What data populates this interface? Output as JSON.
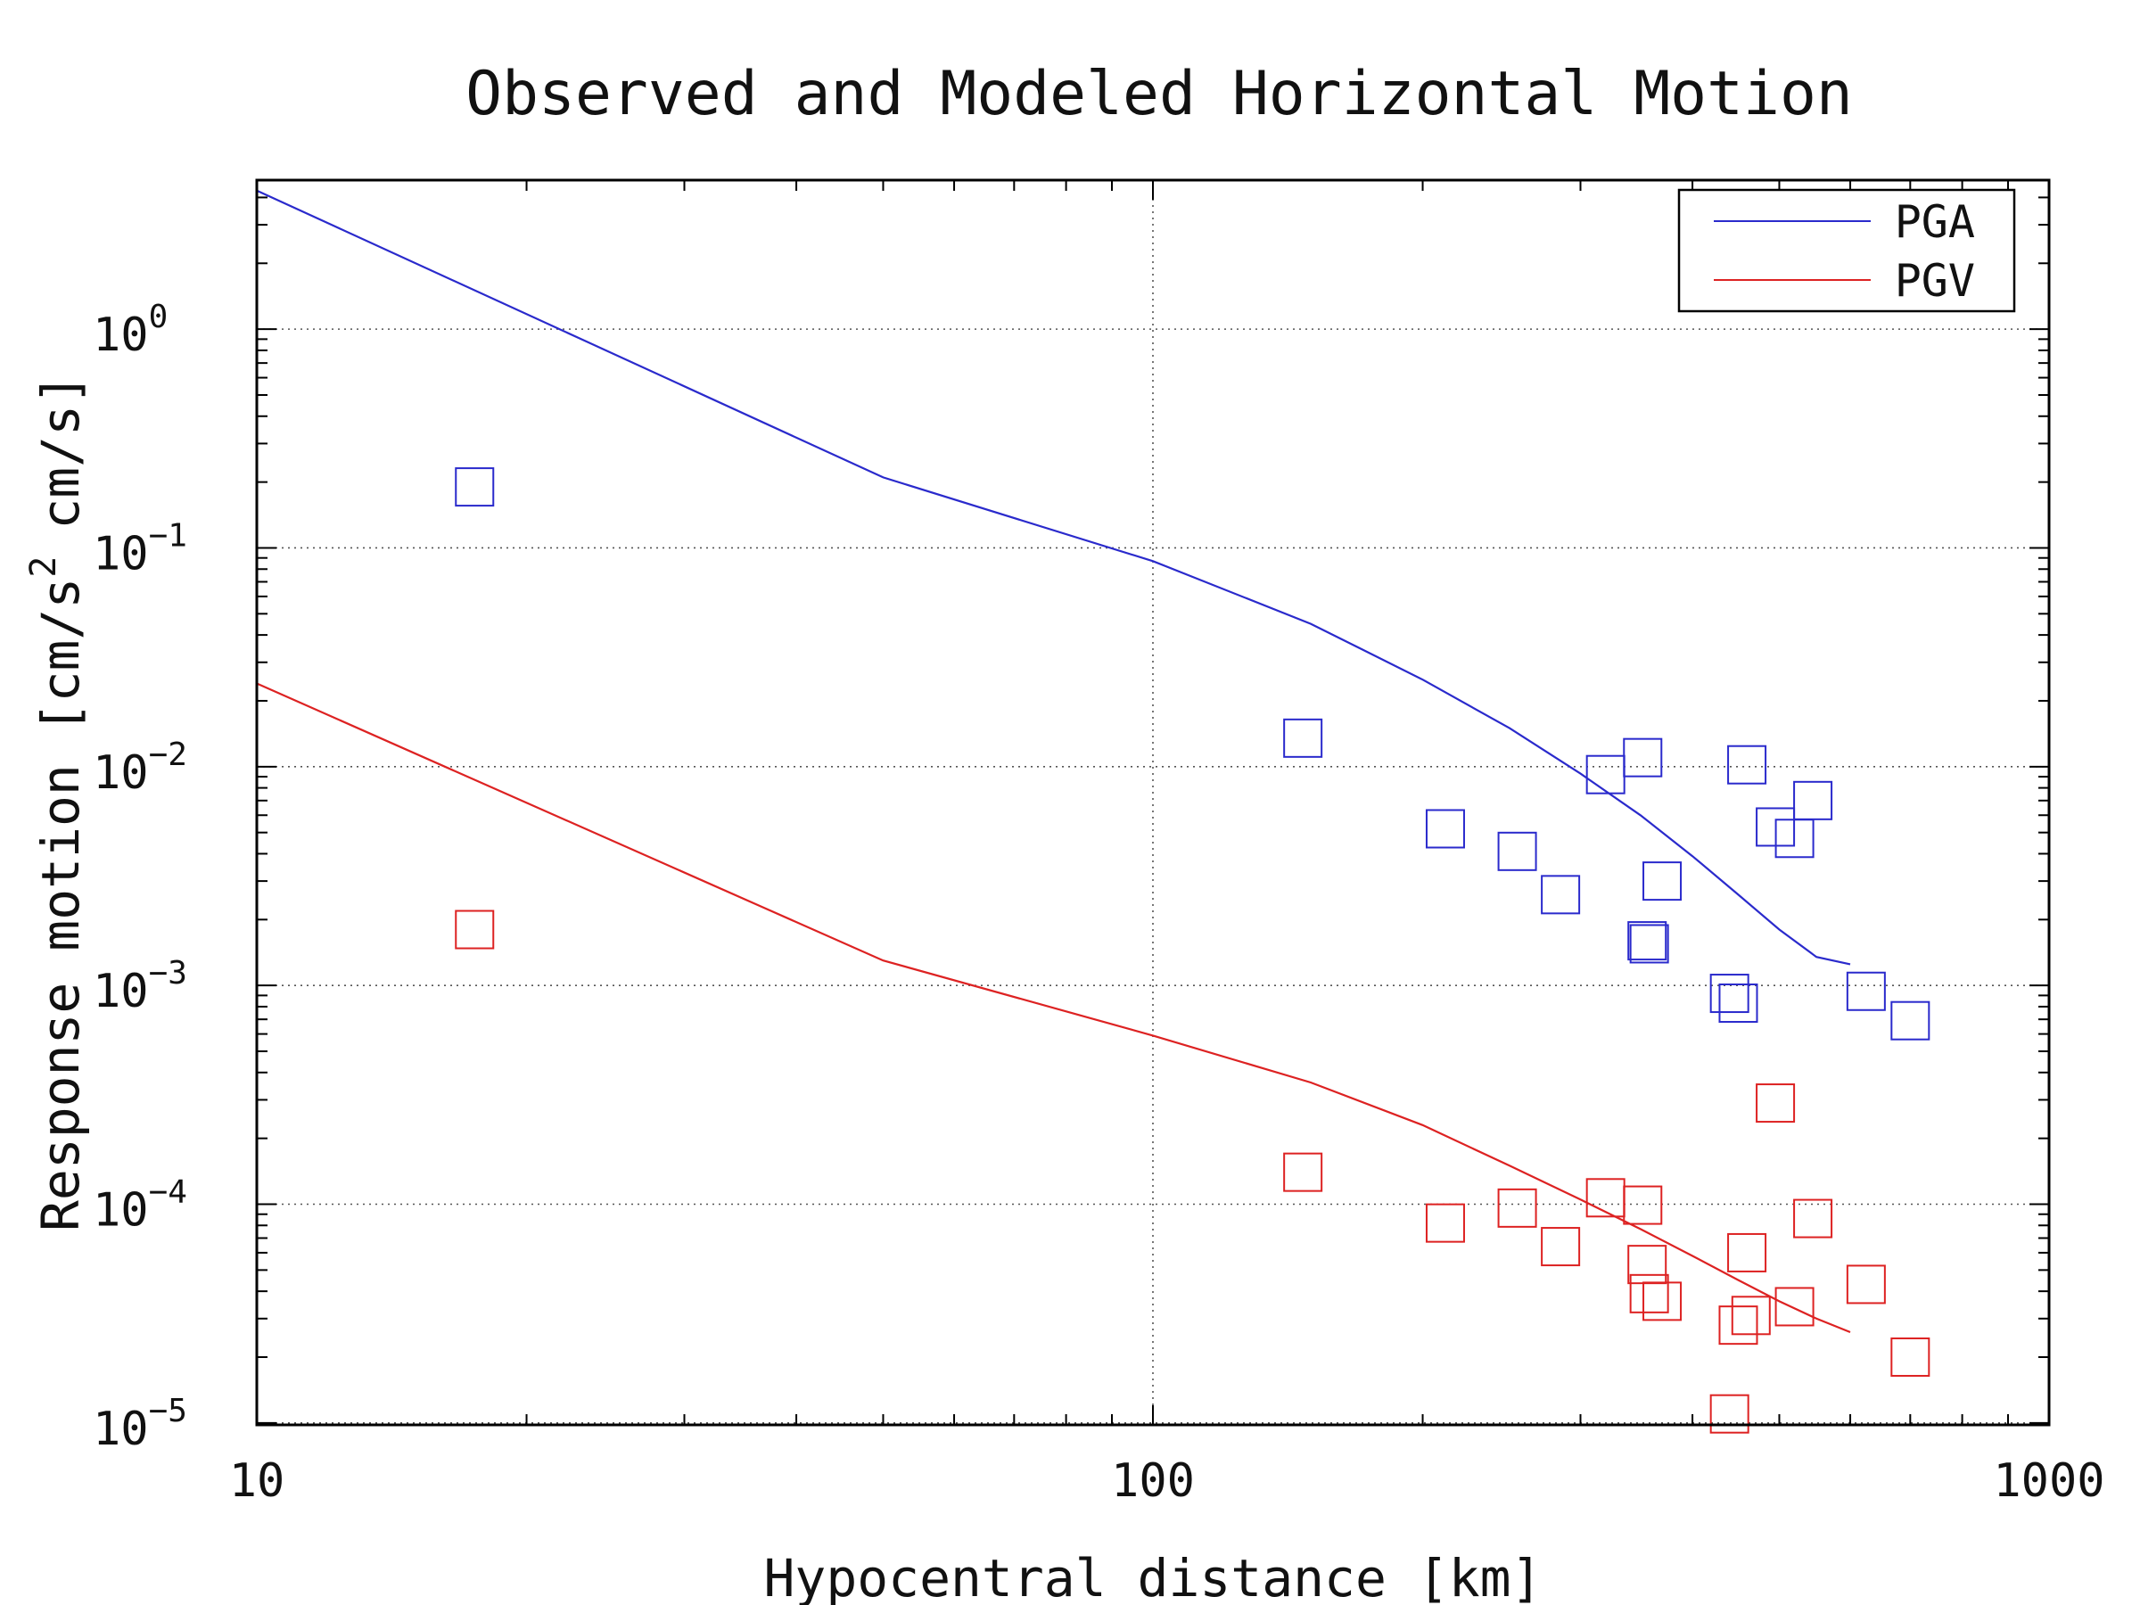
{
  "chart_data": {
    "type": "scatter",
    "title": "Observed and Modeled Horizontal Motion",
    "xlabel": "Hypocentral distance [km]",
    "ylabel": "Response motion [cm/s² cm/s]",
    "x_scale": "log",
    "y_scale": "log",
    "xlim": [
      10,
      1000
    ],
    "ylim": [
      9.8e-06,
      4.8
    ],
    "grid": true,
    "legend_position": "top-right",
    "x_ticks": [
      {
        "value": 10,
        "label": "10"
      },
      {
        "value": 100,
        "label": "100"
      },
      {
        "value": 1000,
        "label": "1000"
      }
    ],
    "y_ticks": [
      {
        "value": 1,
        "base": "10",
        "exp": "0"
      },
      {
        "value": 0.1,
        "base": "10",
        "exp": "−1"
      },
      {
        "value": 0.01,
        "base": "10",
        "exp": "−2"
      },
      {
        "value": 0.001,
        "base": "10",
        "exp": "−3"
      },
      {
        "value": 0.0001,
        "base": "10",
        "exp": "−4"
      },
      {
        "value": 1e-05,
        "base": "10",
        "exp": "−5"
      }
    ],
    "ylabel_parts": {
      "main": "Response motion [cm/s",
      "sup": "2",
      "tail": "cm/s]"
    },
    "series": [
      {
        "name": "PGA",
        "kind": "line",
        "color": "#2a2acc",
        "x": [
          10,
          50,
          100,
          150,
          200,
          250,
          300,
          350,
          400,
          450,
          500,
          550,
          600
        ],
        "y": [
          4.3,
          0.21,
          0.087,
          0.045,
          0.025,
          0.015,
          0.0093,
          0.006,
          0.0039,
          0.0026,
          0.0018,
          0.00135,
          0.00125
        ]
      },
      {
        "name": "PGV",
        "kind": "line",
        "color": "#dd2222",
        "x": [
          10,
          50,
          100,
          150,
          200,
          250,
          300,
          350,
          400,
          450,
          500,
          550,
          600
        ],
        "y": [
          0.024,
          0.0013,
          0.00059,
          0.00036,
          0.00023,
          0.00015,
          0.000105,
          7.7e-05,
          5.8e-05,
          4.5e-05,
          3.6e-05,
          3e-05,
          2.6e-05
        ]
      },
      {
        "name": "PGA observed",
        "kind": "points",
        "color": "#2a2acc",
        "x": [
          17.5,
          147,
          212,
          255,
          285,
          320,
          352,
          356,
          358,
          370,
          440,
          450,
          460,
          495,
          520,
          545,
          625,
          700
        ],
        "y": [
          0.19,
          0.0135,
          0.0052,
          0.0041,
          0.0026,
          0.0092,
          0.011,
          0.0016,
          0.00155,
          0.003,
          0.00092,
          0.00083,
          0.0102,
          0.0053,
          0.0047,
          0.007,
          0.00094,
          0.00069
        ]
      },
      {
        "name": "PGV observed",
        "kind": "points",
        "color": "#dd2222",
        "x": [
          17.5,
          147,
          212,
          255,
          285,
          320,
          352,
          356,
          358,
          370,
          440,
          450,
          460,
          465,
          495,
          520,
          545,
          625,
          700
        ],
        "y": [
          0.0018,
          0.00014,
          8.2e-05,
          9.6e-05,
          6.4e-05,
          0.000107,
          9.9e-05,
          5.3e-05,
          3.9e-05,
          3.6e-05,
          1.1e-05,
          2.8e-05,
          6e-05,
          3.1e-05,
          0.00029,
          3.4e-05,
          8.6e-05,
          4.3e-05,
          2e-05
        ]
      }
    ],
    "legend": [
      {
        "name": "PGA",
        "color": "#2a2acc"
      },
      {
        "name": "PGV",
        "color": "#dd2222"
      }
    ]
  }
}
